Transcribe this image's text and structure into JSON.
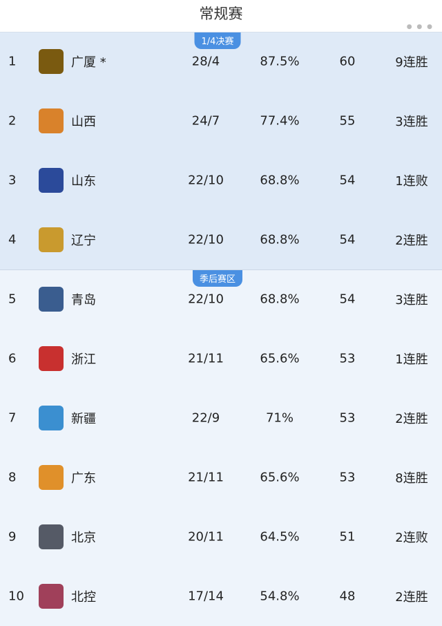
{
  "header": {
    "title": "常规赛",
    "more_icon": "ellipsis-icon"
  },
  "zones": {
    "quarterfinal": "1/4决赛",
    "playoff": "季后赛区"
  },
  "colors": {
    "accent": "#4a90e2",
    "zone_top": "#dfeaf7",
    "zone_rest": "#eef4fb"
  },
  "rows": [
    {
      "rank": "1",
      "team": "广厦 *",
      "record": "28/4",
      "pct": "87.5%",
      "points": "60",
      "streak": "9连胜",
      "logo": "#7a5a10"
    },
    {
      "rank": "2",
      "team": "山西",
      "record": "24/7",
      "pct": "77.4%",
      "points": "55",
      "streak": "3连胜",
      "logo": "#d9822b"
    },
    {
      "rank": "3",
      "team": "山东",
      "record": "22/10",
      "pct": "68.8%",
      "points": "54",
      "streak": "1连败",
      "logo": "#2b4a9a"
    },
    {
      "rank": "4",
      "team": "辽宁",
      "record": "22/10",
      "pct": "68.8%",
      "points": "54",
      "streak": "2连胜",
      "logo": "#c99a2e"
    },
    {
      "rank": "5",
      "team": "青岛",
      "record": "22/10",
      "pct": "68.8%",
      "points": "54",
      "streak": "3连胜",
      "logo": "#3a5d8f"
    },
    {
      "rank": "6",
      "team": "浙江",
      "record": "21/11",
      "pct": "65.6%",
      "points": "53",
      "streak": "1连胜",
      "logo": "#c8302f"
    },
    {
      "rank": "7",
      "team": "新疆",
      "record": "22/9",
      "pct": "71%",
      "points": "53",
      "streak": "2连胜",
      "logo": "#3b8fd0"
    },
    {
      "rank": "8",
      "team": "广东",
      "record": "21/11",
      "pct": "65.6%",
      "points": "53",
      "streak": "8连胜",
      "logo": "#e0902a"
    },
    {
      "rank": "9",
      "team": "北京",
      "record": "20/11",
      "pct": "64.5%",
      "points": "51",
      "streak": "2连败",
      "logo": "#555a66"
    },
    {
      "rank": "10",
      "team": "北控",
      "record": "17/14",
      "pct": "54.8%",
      "points": "48",
      "streak": "2连胜",
      "logo": "#a0405a"
    }
  ]
}
